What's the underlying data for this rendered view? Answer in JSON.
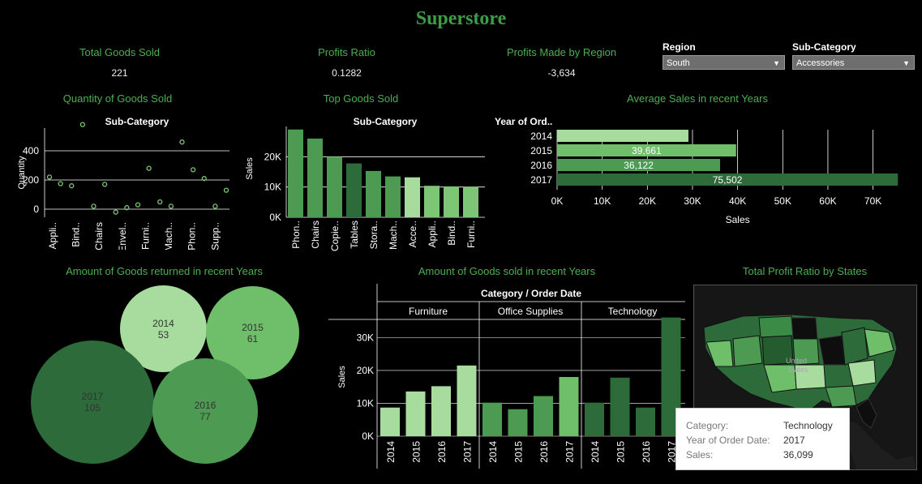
{
  "app": {
    "title": "Superstore"
  },
  "kpis": [
    {
      "title": "Total Goods Sold",
      "value": "221"
    },
    {
      "title": "Profits Ratio",
      "value": "0.1282"
    },
    {
      "title": "Profits Made by Region",
      "value": "-3,634"
    }
  ],
  "filters": {
    "region": {
      "label": "Region",
      "value": "South"
    },
    "subcategory": {
      "label": "Sub-Category",
      "value": "Accessories"
    }
  },
  "sections": {
    "quantity": "Quantity of Goods Sold",
    "top_goods": "Top Goods Sold",
    "avg_sales": "Average Sales in recent Years",
    "returned": "Amount of Goods returned in recent Years",
    "sold_years": "Amount of Goods sold in recent Years",
    "profit_states": "Total Profit Ratio by States"
  },
  "map": {
    "country_label": "United\nStates"
  },
  "tooltip": {
    "rows": [
      {
        "key": "Category:",
        "value": "Technology"
      },
      {
        "key": "Year of Order Date:",
        "value": "2017"
      },
      {
        "key": "Sales:",
        "value": "36,099"
      }
    ]
  },
  "colors": {
    "accent": "#4caf50",
    "dark_green": "#2e6b3a",
    "mid_green": "#4d9a52",
    "light_green": "#a8dc9e"
  },
  "chart_data": [
    {
      "id": "quantity",
      "type": "scatter",
      "title": "Sub-Category",
      "ylabel": "Quantity",
      "ylim": [
        0,
        600
      ],
      "yticks": [
        0,
        200,
        400
      ],
      "categories": [
        "Appli..",
        "Bind..",
        "Chairs",
        "Envel..",
        "Furni..",
        "Mach..",
        "Phon..",
        "Supp.."
      ],
      "x": [
        0,
        1,
        2,
        3,
        4,
        5,
        6,
        7,
        8,
        9,
        10,
        11,
        12,
        13,
        14,
        15,
        16
      ],
      "values": [
        220,
        175,
        160,
        580,
        20,
        170,
        -20,
        10,
        30,
        280,
        50,
        20,
        460,
        270,
        210,
        20,
        130
      ]
    },
    {
      "id": "top_goods",
      "type": "bar",
      "title": "Sub-Category",
      "ylabel": "Sales",
      "ylim": [
        0,
        30000
      ],
      "yticks": [
        0,
        10000,
        20000
      ],
      "ytick_labels": [
        "0K",
        "10K",
        "20K"
      ],
      "categories": [
        "Phon..",
        "Chairs",
        "Copie..",
        "Tables",
        "Stora..",
        "Mach..",
        "Acce..",
        "Appli..",
        "Bind..",
        "Furni.."
      ],
      "values": [
        29000,
        26000,
        20000,
        17800,
        15300,
        13500,
        13200,
        10400,
        10200,
        10100
      ],
      "colors": [
        "#4d9a52",
        "#4d9a52",
        "#4d9a52",
        "#2e6b3a",
        "#4d9a52",
        "#4d9a52",
        "#a8dc9e",
        "#7cc675",
        "#7cc675",
        "#7cc675"
      ]
    },
    {
      "id": "avg_sales",
      "type": "bar",
      "orientation": "horizontal",
      "title": "Year of Ord..",
      "xlabel": "Sales",
      "xlim": [
        0,
        75000
      ],
      "xticks": [
        0,
        10000,
        20000,
        30000,
        40000,
        50000,
        60000,
        70000
      ],
      "xtick_labels": [
        "0K",
        "10K",
        "20K",
        "30K",
        "40K",
        "50K",
        "60K",
        "70K"
      ],
      "categories": [
        "2014",
        "2015",
        "2016",
        "2017"
      ],
      "values": [
        29100,
        39661,
        36122,
        75502
      ],
      "data_labels": [
        "",
        "39,661",
        "36,122",
        "75,502"
      ],
      "colors": [
        "#a8dc9e",
        "#6fbe69",
        "#4d9a52",
        "#2e6b3a"
      ]
    },
    {
      "id": "returned",
      "type": "bubble",
      "items": [
        {
          "label": "2014",
          "value": 53,
          "color": "#a8dc9e"
        },
        {
          "label": "2015",
          "value": 61,
          "color": "#6fbe69"
        },
        {
          "label": "2017",
          "value": 105,
          "color": "#2e6b3a"
        },
        {
          "label": "2016",
          "value": 77,
          "color": "#4d9a52"
        }
      ]
    },
    {
      "id": "sold_years",
      "type": "bar",
      "title": "Category / Order Date",
      "ylabel": "Sales",
      "ylim": [
        0,
        37000
      ],
      "yticks": [
        0,
        10000,
        20000,
        30000
      ],
      "ytick_labels": [
        "0K",
        "10K",
        "20K",
        "30K"
      ],
      "groups": [
        {
          "name": "Furniture",
          "categories": [
            "2014",
            "2015",
            "2016",
            "2017"
          ],
          "values": [
            8700,
            13600,
            15200,
            21500
          ],
          "colors": [
            "#a8dc9e",
            "#a8dc9e",
            "#a8dc9e",
            "#a8dc9e"
          ]
        },
        {
          "name": "Office Supplies",
          "categories": [
            "2014",
            "2015",
            "2016",
            "2017"
          ],
          "values": [
            10200,
            8200,
            12200,
            18000
          ],
          "colors": [
            "#4d9a52",
            "#4d9a52",
            "#4d9a52",
            "#6fbe69"
          ]
        },
        {
          "name": "Technology",
          "categories": [
            "2014",
            "2015",
            "2016",
            "2017"
          ],
          "values": [
            10200,
            17800,
            8700,
            36099
          ],
          "colors": [
            "#2e6b3a",
            "#2e6b3a",
            "#2e6b3a",
            "#2e6b3a"
          ]
        }
      ]
    }
  ]
}
